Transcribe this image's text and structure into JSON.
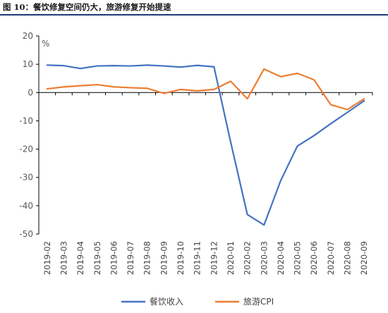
{
  "figure_title": "图 10：餐饮修复空间仍大，旅游修复开始提速",
  "chart_data": {
    "type": "line",
    "x": [
      "2019-02",
      "2019-03",
      "2019-04",
      "2019-05",
      "2019-06",
      "2019-07",
      "2019-08",
      "2019-09",
      "2019-10",
      "2019-11",
      "2019-12",
      "2020-01",
      "2020-02",
      "2020-03",
      "2020-04",
      "2020-05",
      "2020-06",
      "2020-07",
      "2020-08",
      "2020-09"
    ],
    "series": [
      {
        "name": "餐饮收入",
        "color": "#4472c4",
        "values": [
          9.7,
          9.5,
          8.5,
          9.4,
          9.5,
          9.4,
          9.7,
          9.4,
          9.0,
          9.6,
          9.1,
          -17.5,
          -43.1,
          -46.8,
          -31.1,
          -18.9,
          -15.2,
          -11.0,
          -7.0,
          -2.9
        ]
      },
      {
        "name": "旅游CPI",
        "color": "#ed7d31",
        "values": [
          1.3,
          2.0,
          2.4,
          2.8,
          2.0,
          1.7,
          1.5,
          -0.3,
          1.1,
          0.6,
          1.1,
          4.0,
          -2.2,
          8.3,
          5.6,
          6.8,
          4.5,
          -4.3,
          -6.0,
          -2.2
        ]
      }
    ],
    "yticks": [
      "20",
      "10",
      "0",
      "-10",
      "-20",
      "-30",
      "-40",
      "-50"
    ],
    "ylim": [
      -50,
      20
    ],
    "unit_label": "%",
    "legend_position": "bottom",
    "grid": false
  }
}
